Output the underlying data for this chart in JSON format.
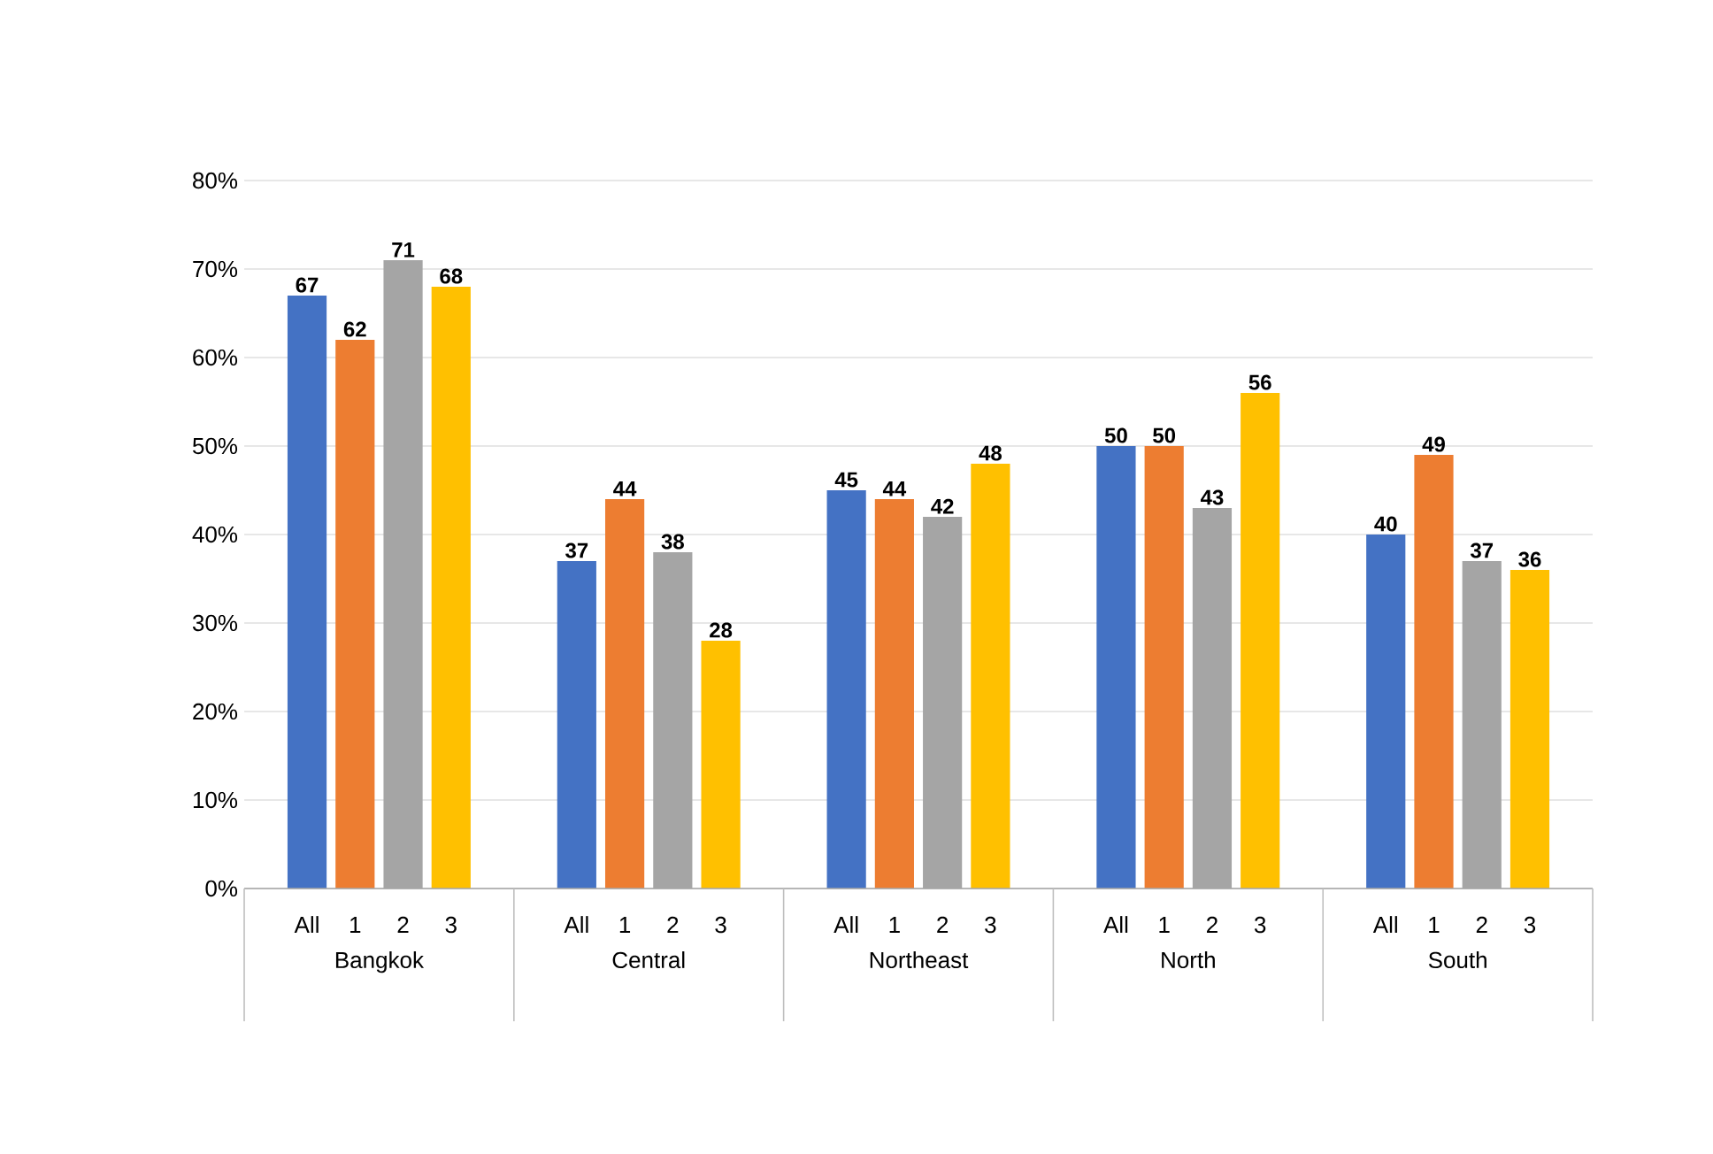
{
  "chart_data": {
    "type": "bar",
    "categories": [
      "Bangkok",
      "Central",
      "Northeast",
      "North",
      "South"
    ],
    "series": [
      {
        "name": "All",
        "color": "#4472c4",
        "values": [
          67,
          37,
          45,
          50,
          40
        ]
      },
      {
        "name": "1",
        "color": "#ed7d31",
        "values": [
          62,
          44,
          44,
          50,
          49
        ]
      },
      {
        "name": "2",
        "color": "#a5a5a5",
        "values": [
          71,
          38,
          42,
          43,
          37
        ]
      },
      {
        "name": "3",
        "color": "#ffc000",
        "values": [
          68,
          28,
          48,
          56,
          36
        ]
      }
    ],
    "ylim": [
      0,
      80
    ],
    "yticks": [
      {
        "value": 0,
        "label": "0%"
      },
      {
        "value": 10,
        "label": "10%"
      },
      {
        "value": 20,
        "label": "20%"
      },
      {
        "value": 30,
        "label": "30%"
      },
      {
        "value": 40,
        "label": "40%"
      },
      {
        "value": 50,
        "label": "50%"
      },
      {
        "value": 60,
        "label": "60%"
      },
      {
        "value": 70,
        "label": "70%"
      },
      {
        "value": 80,
        "label": "80%"
      }
    ],
    "grid": "y",
    "data_labels": true
  }
}
